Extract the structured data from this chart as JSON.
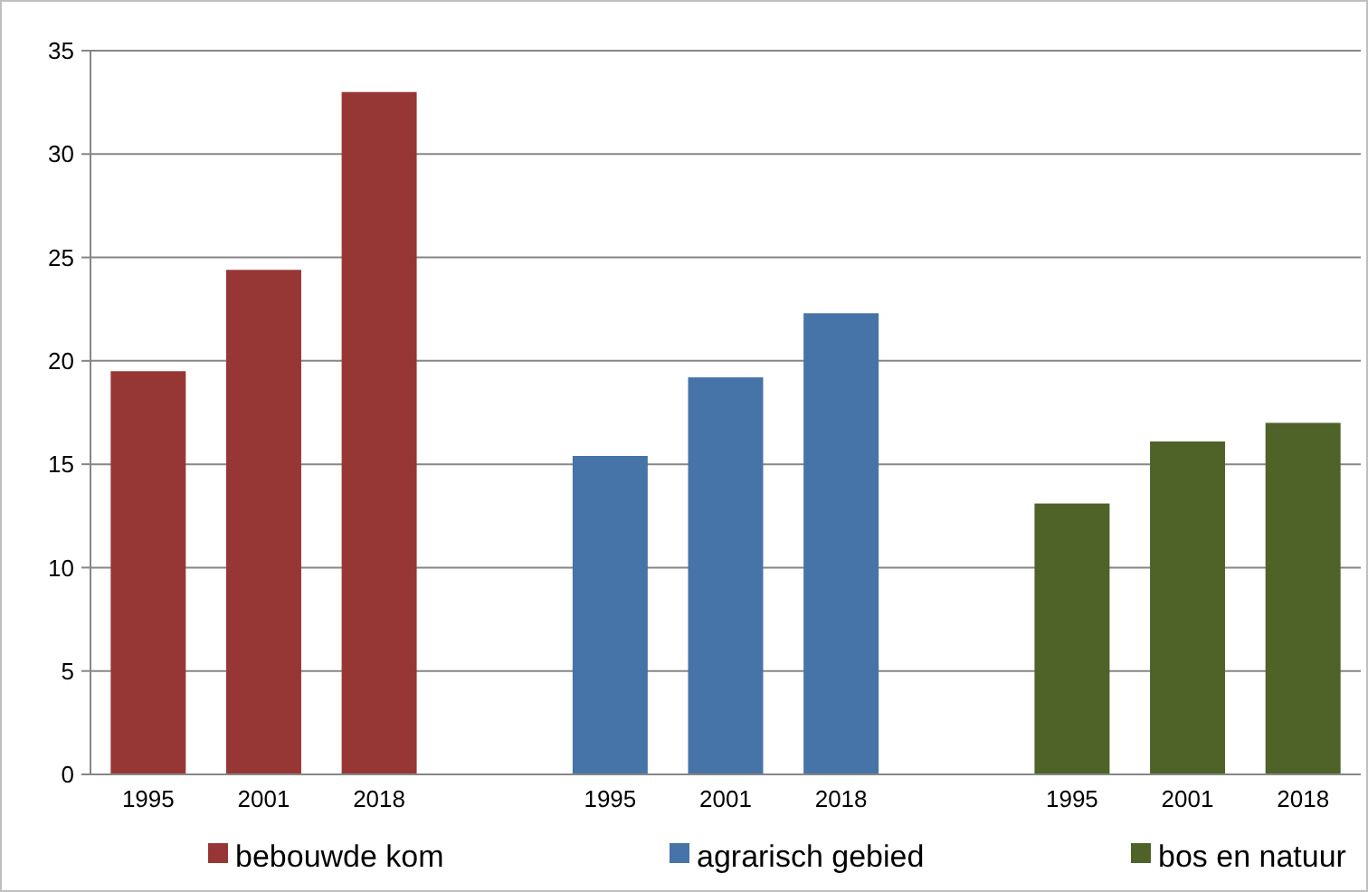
{
  "chart_data": {
    "type": "bar",
    "categories": [
      "1995",
      "2001",
      "2018",
      null,
      "1995",
      "2001",
      "2018",
      null,
      "1995",
      "2001",
      "2018"
    ],
    "series": [
      {
        "name": "bebouwde kom",
        "color": "#973735",
        "values": [
          19.5,
          24.4,
          33,
          null,
          null,
          null,
          null,
          null,
          null,
          null,
          null
        ]
      },
      {
        "name": "agrarisch gebied",
        "color": "#4673a8",
        "values": [
          null,
          null,
          null,
          null,
          15.4,
          19.2,
          22.3,
          null,
          null,
          null,
          null
        ]
      },
      {
        "name": "bos en natuur",
        "color": "#4f6228",
        "values": [
          null,
          null,
          null,
          null,
          null,
          null,
          null,
          null,
          13.1,
          16.1,
          17
        ]
      }
    ],
    "ylim": [
      0,
      35
    ],
    "yticks": [
      0,
      5,
      10,
      15,
      20,
      25,
      30,
      35
    ],
    "grid": "y",
    "legend": "bottom"
  }
}
